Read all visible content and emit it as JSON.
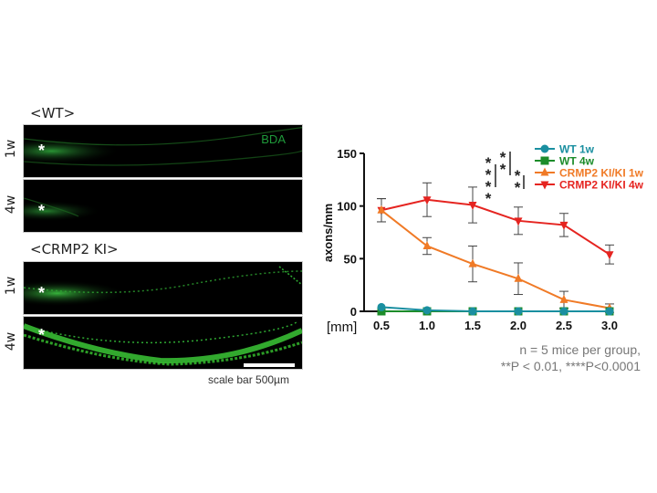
{
  "micrographs": {
    "wt_label": "<WT>",
    "crmp2_label": "<CRMP2 KI>",
    "row_1w": "1w",
    "row_4w": "4w",
    "stain_label": "BDA",
    "lesion_marker": "*",
    "scale_bar_label": "scale bar 500µm"
  },
  "footnote": {
    "line1": "n = 5 mice per group,",
    "line2": "**P < 0.01, ****P<0.0001"
  },
  "significance": {
    "left": "****",
    "mid": "**",
    "right": "**"
  },
  "chart_data": {
    "type": "line",
    "title": "",
    "xlabel": "[mm]",
    "ylabel": "axons/mm",
    "x": [
      0.5,
      1.0,
      1.5,
      2.0,
      2.5,
      3.0
    ],
    "x_tick_labels": [
      "0.5",
      "1.0",
      "1.5",
      "2.0",
      "2.5",
      "3.0"
    ],
    "y_ticks": [
      0,
      50,
      100,
      150
    ],
    "ylim": [
      0,
      150
    ],
    "grid": false,
    "legend_position": "top-right",
    "series": [
      {
        "name": "WT 1w",
        "color": "#1a8fa0",
        "marker": "circle",
        "values": [
          4,
          1,
          0,
          0,
          0,
          0
        ],
        "errors": [
          0,
          0,
          0,
          0,
          0,
          0
        ]
      },
      {
        "name": "WT 4w",
        "color": "#1c8c2a",
        "marker": "square",
        "values": [
          0,
          0,
          0,
          0,
          0,
          0
        ],
        "errors": [
          0,
          0,
          0,
          0,
          0,
          0
        ]
      },
      {
        "name": "CRMP2 KI/KI 1w",
        "color": "#f07a26",
        "marker": "triangle-up",
        "values": [
          96,
          62,
          45,
          31,
          11,
          3
        ],
        "errors": [
          11,
          8,
          17,
          15,
          8,
          4
        ]
      },
      {
        "name": "CRMP2 KI/KI 4w",
        "color": "#e52420",
        "marker": "triangle-down",
        "values": [
          96,
          106,
          101,
          86,
          82,
          54
        ],
        "errors": [
          11,
          16,
          17,
          13,
          11,
          9
        ]
      }
    ]
  }
}
